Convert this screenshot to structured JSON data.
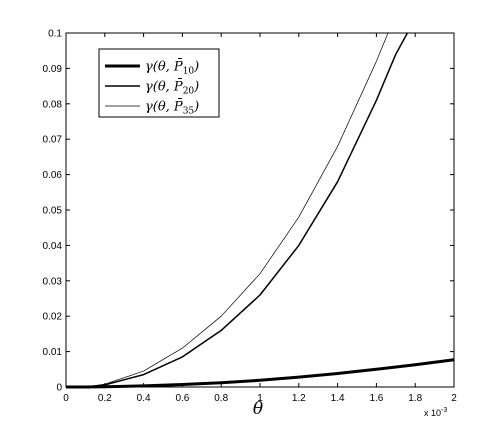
{
  "chart_data": {
    "type": "line",
    "title": "",
    "xlabel": "θ",
    "ylabel": "",
    "x_multiplier": "x 10",
    "x_multiplier_exponent": "-3",
    "xlim": [
      0,
      2
    ],
    "ylim": [
      0,
      0.1
    ],
    "x_ticks": [
      "0",
      "0.2",
      "0.4",
      "0.6",
      "0.8",
      "1",
      "1.2",
      "1.4",
      "1.6",
      "1.8",
      "2"
    ],
    "y_ticks": [
      "0",
      "0.01",
      "0.02",
      "0.03",
      "0.04",
      "0.05",
      "0.06",
      "0.07",
      "0.08",
      "0.09",
      "0.1"
    ],
    "grid": false,
    "legend_position": "top-left",
    "series": [
      {
        "legend_main": "γ(θ, P̄",
        "legend_sub": "10",
        "legend_close": ")",
        "x": [
          0,
          0.1,
          0.2,
          0.4,
          0.6,
          0.8,
          1.0,
          1.2,
          1.4,
          1.6,
          1.8,
          2.0
        ],
        "y": [
          0,
          0,
          5e-05,
          0.0003,
          0.0007,
          0.0012,
          0.0019,
          0.0028,
          0.0038,
          0.005,
          0.0063,
          0.0077
        ]
      },
      {
        "legend_main": "γ(θ, P̄",
        "legend_sub": "20",
        "legend_close": ")",
        "x": [
          0,
          0.1,
          0.2,
          0.4,
          0.6,
          0.8,
          1.0,
          1.2,
          1.4,
          1.6,
          1.7,
          1.76
        ],
        "y": [
          0,
          0,
          0.0006,
          0.0035,
          0.0085,
          0.016,
          0.026,
          0.04,
          0.058,
          0.081,
          0.094,
          0.1
        ]
      },
      {
        "legend_main": "γ(θ, P̄",
        "legend_sub": "35",
        "legend_close": ")",
        "x": [
          0,
          0.1,
          0.2,
          0.4,
          0.6,
          0.8,
          1.0,
          1.2,
          1.4,
          1.6,
          1.66
        ],
        "y": [
          0,
          0,
          0.0008,
          0.0045,
          0.011,
          0.02,
          0.032,
          0.048,
          0.068,
          0.092,
          0.1
        ]
      }
    ]
  }
}
